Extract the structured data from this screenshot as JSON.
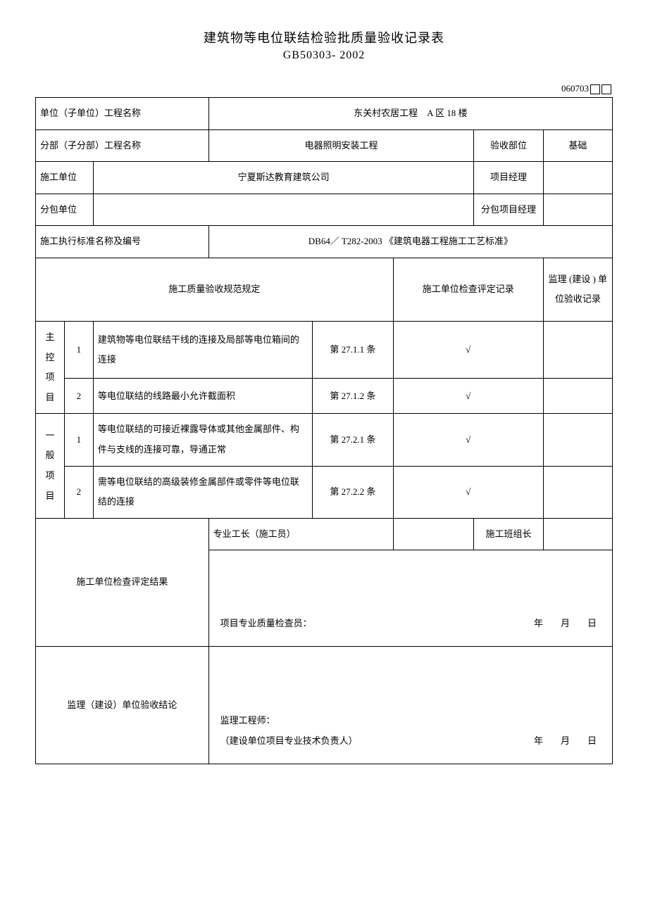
{
  "title": {
    "line1": "建筑物等电位联结检验批质量验收记录表",
    "line2": "GB50303- 2002"
  },
  "doc_number": "060703",
  "header_rows": {
    "row1": {
      "label": "单位（子单位）工程名称",
      "value": "东关村农居工程　A 区 18 楼"
    },
    "row2": {
      "label": "分部（子分部）工程名称",
      "value": "电器照明安装工程",
      "right_label": "验收部位",
      "right_value": "基础"
    },
    "row3": {
      "label": "施工单位",
      "value": "宁夏斯达教育建筑公司",
      "right_label": "项目经理",
      "right_value": ""
    },
    "row4": {
      "label": "分包单位",
      "value": "",
      "right_label": "分包项目经理",
      "right_value": ""
    },
    "row5": {
      "label": "施工执行标准名称及编号",
      "value": "DB64／ T282-2003 《建筑电器工程施工工艺标准》"
    }
  },
  "section_headers": {
    "col1": "施工质量验收规范规定",
    "col2": "施工单位检查评定记录",
    "col3": "监理 (建设 ) 单位验收记录"
  },
  "main_items": {
    "group1_label": "主控项目",
    "group2_label": "一般项目",
    "rows": [
      {
        "num": "1",
        "desc": "建筑物等电位联结干线的连接及局部等电位箱间的连接",
        "ref": "第 27.1.1 条",
        "check": "√"
      },
      {
        "num": "2",
        "desc": "等电位联结的线路最小允许截面积",
        "ref": "第 27.1.2 条",
        "check": "√"
      },
      {
        "num": "1",
        "desc": "等电位联结的可接近裸露导体或其他金属部件、构件与支线的连接可靠，导通正常",
        "ref": "第 27.2.1 条",
        "check": "√"
      },
      {
        "num": "2",
        "desc": "需等电位联结的高级装修金属部件或零件等电位联结的连接",
        "ref": "第 27.2.2 条",
        "check": "√"
      }
    ]
  },
  "footer": {
    "foreman_label": "专业工长（施工员）",
    "foreman_value": "",
    "team_label": "施工班组长",
    "team_value": "",
    "result_label": "施工单位检查评定结果",
    "result_signer": "项目专业质量检查员：",
    "result_date": "年　月　日",
    "supervision_label": "监理（建设）单位验收结论",
    "supervision_signer1": "监理工程师：",
    "supervision_signer2": "（建设单位项目专业技术负责人）",
    "supervision_date": "年　月　日"
  },
  "colors": {
    "border": "#000000",
    "background": "#ffffff",
    "text": "#000000"
  }
}
